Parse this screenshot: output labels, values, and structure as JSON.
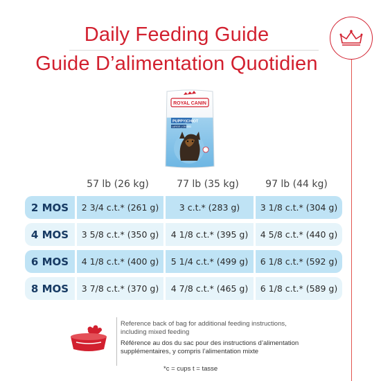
{
  "title": {
    "en": "Daily Feeding Guide",
    "fr": "Guide D’alimentation Quotidien"
  },
  "product": {
    "brand": "ROYAL CANIN",
    "name": "PUPPY|CHIOT",
    "size": "LARGE | GRAND"
  },
  "table": {
    "weights": [
      "57 lb (26 kg)",
      "77 lb (35 kg)",
      "97 lb (44 kg)"
    ],
    "rows": [
      {
        "age": "2 MOS",
        "values": [
          "2 3/4 c.t.* (261 g)",
          "3 c.t.* (283 g)",
          "3 1/8 c.t.* (304 g)"
        ]
      },
      {
        "age": "4 MOS",
        "values": [
          "3 5/8 c.t.* (350 g)",
          "4 1/8 c.t.* (395 g)",
          "4 5/8 c.t.* (440 g)"
        ]
      },
      {
        "age": "6 MOS",
        "values": [
          "4 1/8 c.t.* (400 g)",
          "5 1/4 c.t.* (499 g)",
          "6 1/8 c.t.* (592 g)"
        ]
      },
      {
        "age": "8 MOS",
        "values": [
          "3 7/8 c.t.* (370 g)",
          "4 7/8 c.t.* (465 g)",
          "6 1/8 c.t.* (589 g)"
        ]
      }
    ]
  },
  "notes": {
    "en": "Reference back of bag for additional feeding instructions, including mixed feeding",
    "fr": "Référence au dos du sac pour des instructions d’alimentation supplémentaires, y compris l’alimentation mixte",
    "footnote": "*c = cups t = tasse"
  },
  "colors": {
    "brand_red": "#d2202f",
    "row_dark": "#bfe3f5",
    "row_light": "#e6f4fa",
    "age_text": "#173a63"
  },
  "icons": {
    "badge": "crown-icon",
    "bowl": "food-bowl-icon"
  }
}
